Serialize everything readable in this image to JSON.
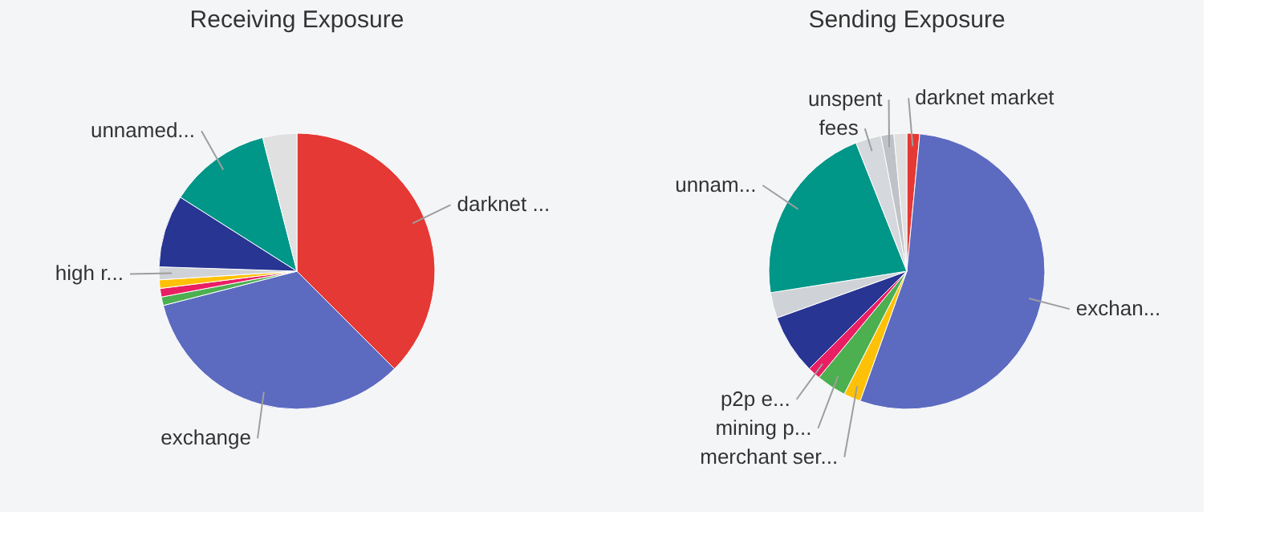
{
  "chart_data": [
    {
      "type": "pie",
      "title": "Receiving Exposure",
      "categories": [
        "darknet ...",
        "exchange",
        null,
        null,
        null,
        "high r...",
        null,
        "unnamed...",
        null
      ],
      "values": [
        37.5,
        33.5,
        1,
        1,
        1,
        1.5,
        8.5,
        12,
        4
      ],
      "colors": [
        "#e53935",
        "#5c6bc0",
        "#4caf50",
        "#e91e63",
        "#ffc107",
        "#cfd2d6",
        "#283593",
        "#009688",
        "#e0e0e0"
      ],
      "legend": false
    },
    {
      "type": "pie",
      "title": "Sending Exposure",
      "categories": [
        "darknet market",
        "exchan...",
        "merchant ser...",
        "mining p...",
        "p2p e...",
        null,
        null,
        "unnam...",
        "fees",
        "unspent",
        null
      ],
      "values": [
        1.5,
        54,
        2,
        3.5,
        1.5,
        7,
        3,
        21.5,
        3,
        1.5,
        1.5
      ],
      "colors": [
        "#e53935",
        "#5c6bc0",
        "#ffc107",
        "#4caf50",
        "#e91e63",
        "#283593",
        "#cfd2d6",
        "#009688",
        "#d5d8dc",
        "#bfc3c8",
        "#e0e0e0"
      ],
      "legend": false
    }
  ]
}
